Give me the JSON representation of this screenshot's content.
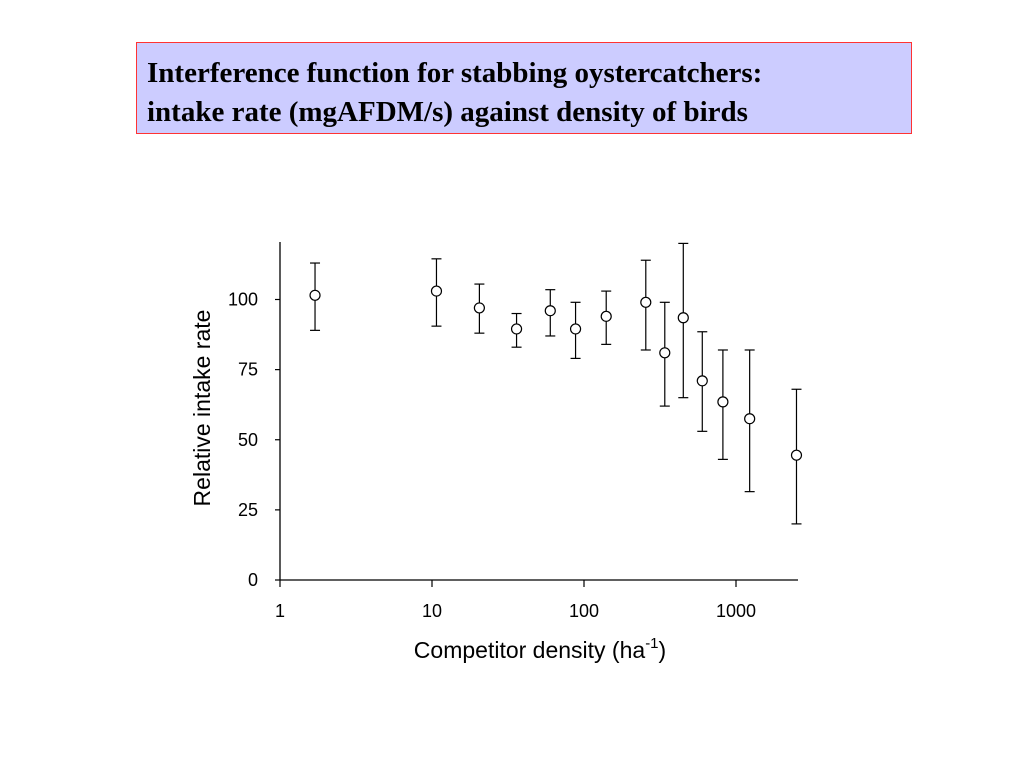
{
  "title": {
    "line1": "Interference function for stabbing oystercatchers:",
    "line2": "intake rate (mgAFDM/s) against density of birds"
  },
  "colors": {
    "title_background": "#ccccff",
    "title_border": "#ff3333",
    "ink": "#000000"
  },
  "chart_data": {
    "type": "scatter",
    "error_bars": true,
    "x_scale": "log",
    "xlabel": "Competitor density (ha",
    "xlabel_superscript": "-1",
    "xlabel_suffix": ")",
    "ylabel": "Relative intake rate",
    "xlim": [
      1,
      2900
    ],
    "ylim": [
      0,
      120
    ],
    "xticks": [
      1,
      10,
      100,
      1000
    ],
    "xtick_labels": [
      "1",
      "10",
      "100",
      "1000"
    ],
    "yticks": [
      0,
      25,
      50,
      75,
      100
    ],
    "ytick_labels": [
      "0",
      "25",
      "50",
      "75",
      "100"
    ],
    "grid": false,
    "points": [
      {
        "x": 1.7,
        "y": 101.5,
        "lower": 89,
        "upper": 113
      },
      {
        "x": 10.7,
        "y": 103,
        "lower": 90.5,
        "upper": 114.5
      },
      {
        "x": 20.5,
        "y": 97,
        "lower": 88,
        "upper": 105.5
      },
      {
        "x": 36,
        "y": 89.5,
        "lower": 83,
        "upper": 95
      },
      {
        "x": 60,
        "y": 96,
        "lower": 87,
        "upper": 103.5
      },
      {
        "x": 88,
        "y": 89.5,
        "lower": 79,
        "upper": 99
      },
      {
        "x": 140,
        "y": 94,
        "lower": 84,
        "upper": 103
      },
      {
        "x": 255,
        "y": 99,
        "lower": 82,
        "upper": 114
      },
      {
        "x": 340,
        "y": 81,
        "lower": 62,
        "upper": 99
      },
      {
        "x": 450,
        "y": 93.5,
        "lower": 65,
        "upper": 120
      },
      {
        "x": 600,
        "y": 71,
        "lower": 53,
        "upper": 88.5
      },
      {
        "x": 820,
        "y": 63.5,
        "lower": 43,
        "upper": 82
      },
      {
        "x": 1230,
        "y": 57.5,
        "lower": 31.5,
        "upper": 82
      },
      {
        "x": 2500,
        "y": 44.5,
        "lower": 20,
        "upper": 68
      }
    ]
  }
}
